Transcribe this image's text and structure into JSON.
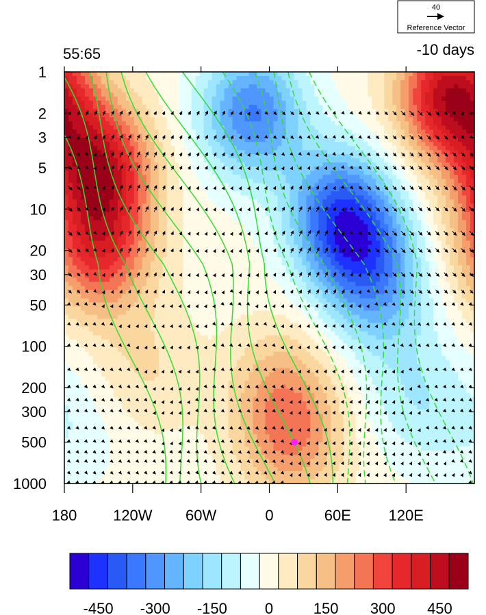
{
  "chart_data": {
    "type": "heatmap",
    "subtitle_left": "55:65",
    "subtitle_right": "-10 days",
    "reference_vector": {
      "magnitude": "40",
      "label": "Reference Vector"
    },
    "x_axis": {
      "range": [
        -180,
        180
      ],
      "ticks": [
        {
          "value": -180,
          "label": "180"
        },
        {
          "value": -120,
          "label": "120W"
        },
        {
          "value": -60,
          "label": "60W"
        },
        {
          "value": 0,
          "label": "0"
        },
        {
          "value": 60,
          "label": "60E"
        },
        {
          "value": 120,
          "label": "120E"
        }
      ]
    },
    "y_axis": {
      "scale": "log",
      "reversed": true,
      "range": [
        1,
        1000
      ],
      "unit": "hPa",
      "ticks": [
        1,
        2,
        3,
        5,
        10,
        20,
        30,
        50,
        100,
        200,
        300,
        500,
        1000
      ]
    },
    "colorbar": {
      "levels": [
        -525,
        -475,
        -425,
        -375,
        -325,
        -275,
        -225,
        -175,
        -125,
        -75,
        -25,
        25,
        75,
        125,
        175,
        225,
        275,
        325,
        375,
        425,
        475,
        525
      ],
      "labeled_ticks": [
        -450,
        -300,
        -150,
        0,
        150,
        300,
        450
      ],
      "colors": [
        "#2A00D5",
        "#1E32FF",
        "#2A5AF5",
        "#3A78FF",
        "#4F96FF",
        "#65B4FF",
        "#7DD2FF",
        "#9EE6FF",
        "#BDF5FF",
        "#E6FFFF",
        "#FFFBE6",
        "#FEEBC1",
        "#FBD7A0",
        "#F6BF86",
        "#F59E6C",
        "#F47555",
        "#F0443C",
        "#E6282C",
        "#D81E22",
        "#BE0D1E",
        "#9A0018"
      ]
    },
    "field_anomalies": [
      {
        "lon": -150,
        "p": 5,
        "value": 420
      },
      {
        "lon": -150,
        "p": 20,
        "value": 320
      },
      {
        "lon": -110,
        "p": 150,
        "value": 80
      },
      {
        "lon": -15,
        "p": 2,
        "value": -330
      },
      {
        "lon": 60,
        "p": 10,
        "value": -300
      },
      {
        "lon": 80,
        "p": 20,
        "value": -280
      },
      {
        "lon": 100,
        "p": 50,
        "value": -150
      },
      {
        "lon": 160,
        "p": 1.5,
        "value": 460
      },
      {
        "lon": 10,
        "p": 200,
        "value": 140
      },
      {
        "lon": 20,
        "p": 500,
        "value": 190
      },
      {
        "lon": -170,
        "p": 400,
        "value": -60
      },
      {
        "lon": 130,
        "p": 250,
        "value": -110
      }
    ],
    "marker": {
      "lon": 22,
      "p": 500,
      "color": "#FF22FF"
    },
    "contour_color": "#33DD33"
  }
}
